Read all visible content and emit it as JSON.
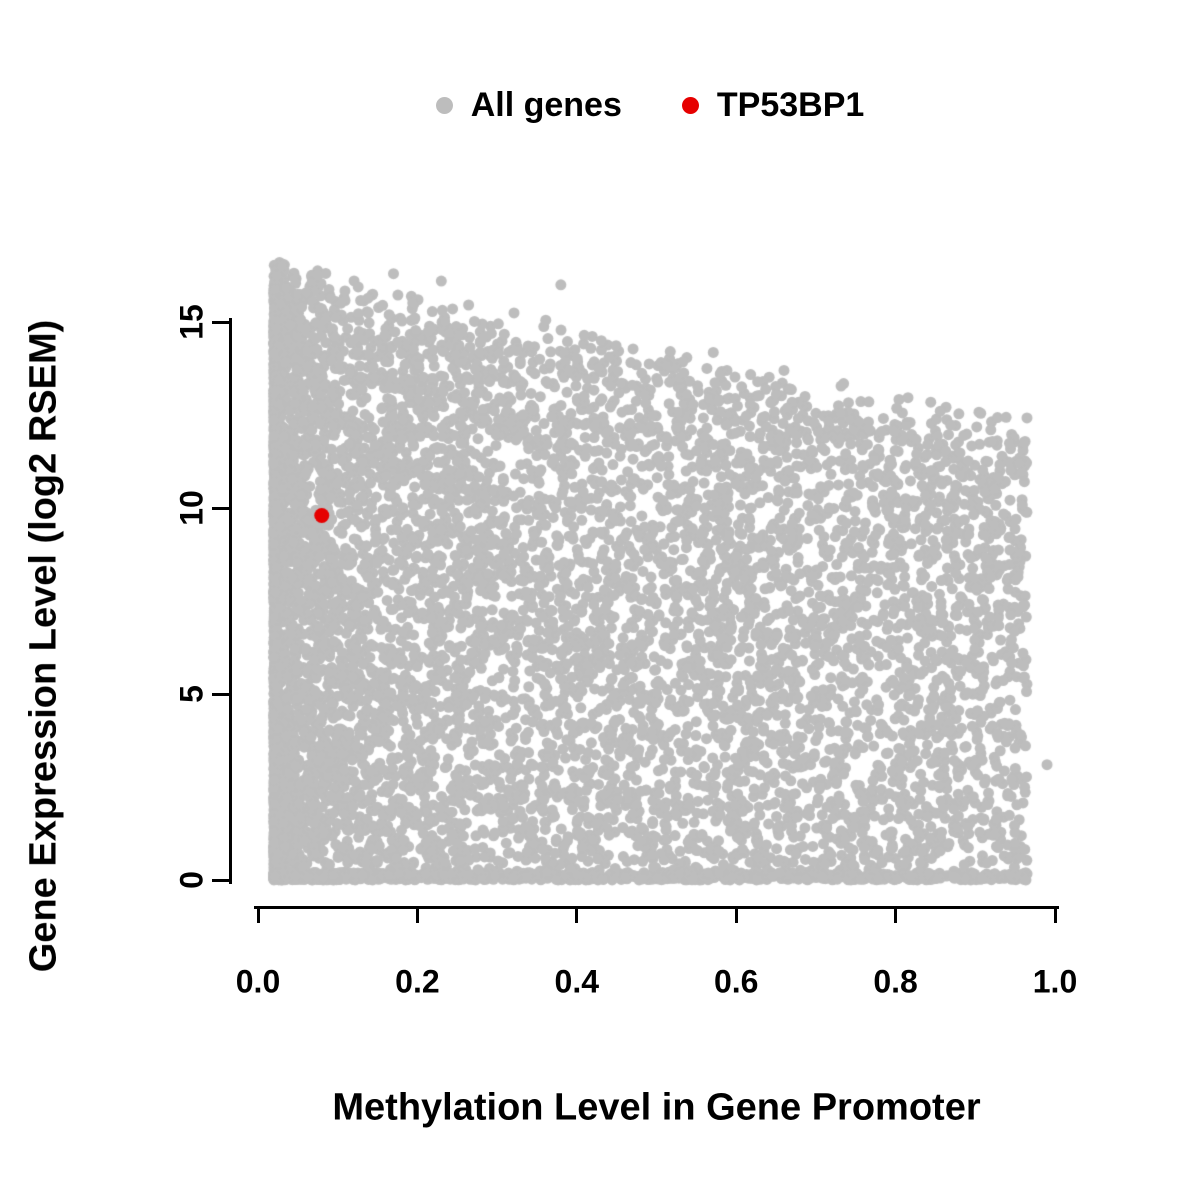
{
  "chart_data": {
    "type": "scatter",
    "title": "",
    "xlabel": "Methylation Level in Gene Promoter",
    "ylabel": "Gene Expression Level (log2 RSEM)",
    "xlim": [
      0.0,
      1.0
    ],
    "ylim": [
      0,
      15
    ],
    "grid": false,
    "x_ticks": [
      {
        "value": 0.0,
        "label": "0.0"
      },
      {
        "value": 0.2,
        "label": "0.2"
      },
      {
        "value": 0.4,
        "label": "0.4"
      },
      {
        "value": 0.6,
        "label": "0.6"
      },
      {
        "value": 0.8,
        "label": "0.8"
      },
      {
        "value": 1.0,
        "label": "1.0"
      }
    ],
    "y_ticks": [
      {
        "value": 0,
        "label": "0"
      },
      {
        "value": 5,
        "label": "5"
      },
      {
        "value": 10,
        "label": "10"
      },
      {
        "value": 15,
        "label": "15"
      }
    ],
    "legend": {
      "position": "top-center",
      "entries": [
        {
          "label": "All genes",
          "color": "#bdbdbd"
        },
        {
          "label": "TP53BP1",
          "color": "#e60000"
        }
      ]
    },
    "series": [
      {
        "name": "All genes",
        "color": "#bdbdbd",
        "render": "dense-cloud",
        "marker_radius_px": 5.5,
        "n_points": 9000,
        "seed": 42,
        "x_range": [
          0.02,
          0.965
        ],
        "y_range": [
          0,
          16.6
        ],
        "upper_envelope": {
          "intercept": 16.3,
          "slope": -4.6,
          "noise": 1.2
        },
        "low_x_cluster_fraction": 0.55,
        "low_x_skew_exponent": 3.0,
        "baseline_band_fraction": 0.1,
        "baseline_band_height": 0.2,
        "extra_points": [
          [
            0.99,
            3.1
          ],
          [
            0.03,
            16.5
          ],
          [
            0.17,
            16.3
          ],
          [
            0.23,
            16.1
          ],
          [
            0.38,
            16.0
          ]
        ],
        "description": "Dense gray cloud; expression spans 0-16.5 at low methylation, upper envelope declines to ~12 at methylation 0.95; heavy band of points along y=0."
      },
      {
        "name": "TP53BP1",
        "color": "#e60000",
        "render": "points",
        "marker_radius_px": 7.5,
        "points": [
          [
            0.08,
            9.8
          ]
        ]
      }
    ]
  }
}
